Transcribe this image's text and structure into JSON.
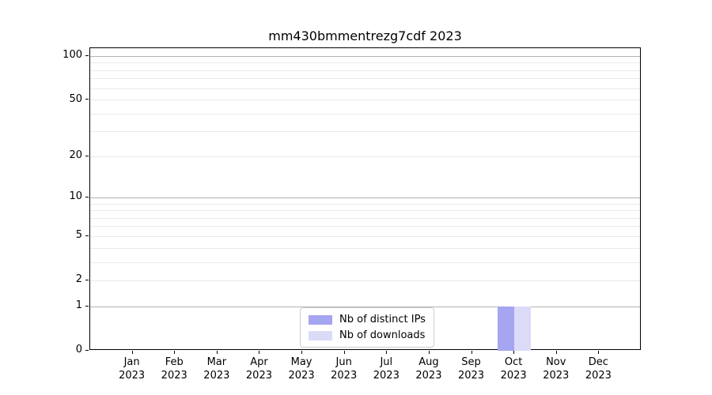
{
  "figure": {
    "title": "mm430bmmentrezg7cdf 2023"
  },
  "chart_data": {
    "type": "bar",
    "title": "mm430bmmentrezg7cdf 2023",
    "categories": [
      "Jan",
      "Feb",
      "Mar",
      "Apr",
      "May",
      "Jun",
      "Jul",
      "Aug",
      "Sep",
      "Oct",
      "Nov",
      "Dec"
    ],
    "category_year": "2023",
    "series": [
      {
        "name": "Nb of distinct IPs",
        "color": "#a5a5f1",
        "values": [
          0,
          0,
          0,
          0,
          0,
          0,
          0,
          0,
          0,
          1,
          0,
          0
        ]
      },
      {
        "name": "Nb of downloads",
        "color": "#dbdbf8",
        "values": [
          0,
          0,
          0,
          0,
          0,
          0,
          0,
          0,
          0,
          1,
          0,
          0
        ]
      }
    ],
    "y_scale": "log1p",
    "y_ticks": [
      0,
      1,
      2,
      5,
      10,
      20,
      50,
      100
    ],
    "y_major_grid": [
      1,
      10,
      100
    ],
    "y_minor_grid": [
      2,
      3,
      4,
      5,
      6,
      7,
      8,
      9,
      20,
      30,
      40,
      50,
      60,
      70,
      80,
      90
    ],
    "ylim": [
      0,
      114
    ],
    "grid": "horizontal",
    "legend": {
      "position": "lower center",
      "items": [
        "Nb of distinct IPs",
        "Nb of downloads"
      ]
    },
    "colors": {
      "major_grid": "#b3b3b3",
      "minor_grid": "#e9e9e9",
      "spine": "#000000",
      "background": "#ffffff"
    }
  }
}
